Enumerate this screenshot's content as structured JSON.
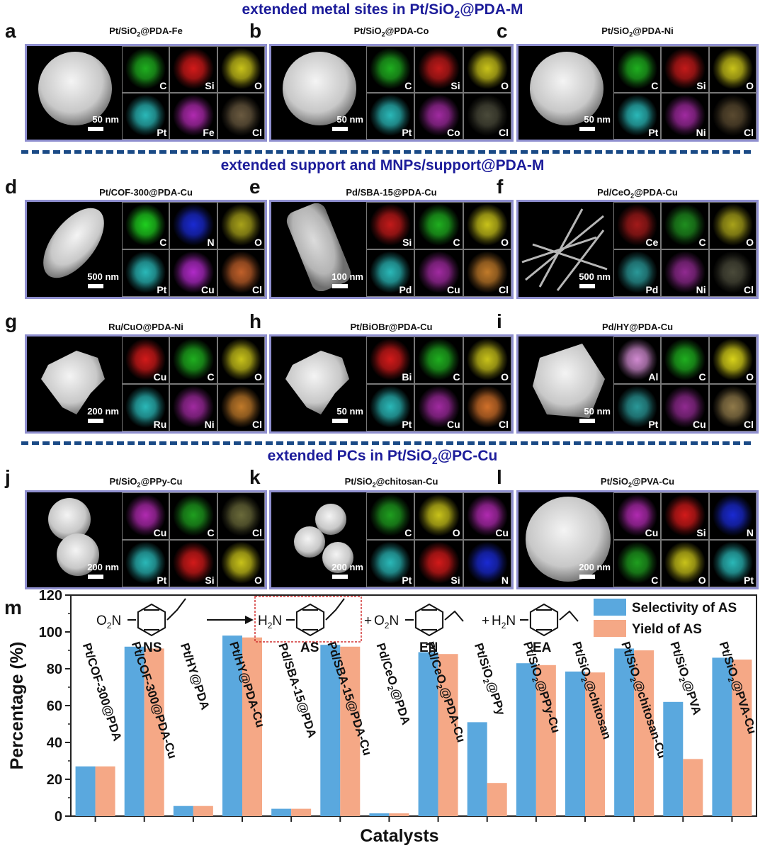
{
  "sections": {
    "metal": {
      "title_pre": "extended metal sites in Pt/SiO",
      "title_sub": "2",
      "title_post": "@PDA-M"
    },
    "support": {
      "title": "extended support and MNPs/support@PDA-M"
    },
    "pc": {
      "title_pre": "extended PCs in Pt/SiO",
      "title_sub": "2",
      "title_post": "@PC-Cu"
    }
  },
  "panels": [
    {
      "label": "a",
      "title_pre": "Pt/SiO",
      "title_sub": "2",
      "title_post": "@PDA-Fe",
      "scale": "50 nm",
      "shape": "sphere",
      "elements": [
        "C",
        "Si",
        "O",
        "Pt",
        "Fe",
        "Cl"
      ],
      "colors": [
        "#1fae1f",
        "#d21a1a",
        "#c8c21a",
        "#2ab8b8",
        "#b02ab0",
        "#6a5a40"
      ]
    },
    {
      "label": "b",
      "title_pre": "Pt/SiO",
      "title_sub": "2",
      "title_post": "@PDA-Co",
      "scale": "50 nm",
      "shape": "sphere",
      "elements": [
        "C",
        "Si",
        "O",
        "Pt",
        "Co",
        "Cl"
      ],
      "colors": [
        "#1fae1f",
        "#c21a1a",
        "#c8c21a",
        "#2ab8b8",
        "#a02aa0",
        "#4a4a3a"
      ]
    },
    {
      "label": "c",
      "title_pre": "Pt/SiO",
      "title_sub": "2",
      "title_post": "@PDA-Ni",
      "scale": "50 nm",
      "shape": "sphere",
      "elements": [
        "C",
        "Si",
        "O",
        "Pt",
        "Ni",
        "Cl"
      ],
      "colors": [
        "#1fae1f",
        "#c21a1a",
        "#c8c21a",
        "#2ab8b8",
        "#a02aa0",
        "#5a4a30"
      ]
    },
    {
      "label": "d",
      "title_pre": "Pt/COF-300@PDA-Cu",
      "title_sub": "",
      "title_post": "",
      "scale": "500 nm",
      "shape": "ellipse",
      "elements": [
        "C",
        "N",
        "O",
        "Pt",
        "Cu",
        "Cl"
      ],
      "colors": [
        "#1fcf1f",
        "#1a2ad2",
        "#a8a21a",
        "#2ab8b8",
        "#b02ac8",
        "#c0602a"
      ]
    },
    {
      "label": "e",
      "title_pre": "Pd/SBA-15@PDA-Cu",
      "title_sub": "",
      "title_post": "",
      "scale": "100 nm",
      "shape": "rod",
      "elements": [
        "Si",
        "C",
        "O",
        "Pd",
        "Cu",
        "Cl"
      ],
      "colors": [
        "#c21a1a",
        "#1fae1f",
        "#c8c21a",
        "#2ab8b8",
        "#a02aa0",
        "#c07a2a"
      ]
    },
    {
      "label": "f",
      "title_pre": "Pd/CeO",
      "title_sub": "2",
      "title_post": "@PDA-Cu",
      "scale": "500 nm",
      "shape": "fibers",
      "elements": [
        "Ce",
        "C",
        "O",
        "Pd",
        "Ni",
        "Cl"
      ],
      "colors": [
        "#a21a1a",
        "#1f8e1f",
        "#a8a21a",
        "#2a9898",
        "#902a90",
        "#4a4a3a"
      ]
    },
    {
      "label": "g",
      "title_pre": "Ru/CuO@PDA-Ni",
      "title_sub": "",
      "title_post": "",
      "scale": "200 nm",
      "shape": "irregular",
      "elements": [
        "Cu",
        "C",
        "O",
        "Ru",
        "Ni",
        "Cl"
      ],
      "colors": [
        "#d21a1a",
        "#1fae1f",
        "#c8c21a",
        "#2ab8b8",
        "#a02aa0",
        "#c07a2a"
      ]
    },
    {
      "label": "h",
      "title_pre": "Pt/BiOBr@PDA-Cu",
      "title_sub": "",
      "title_post": "",
      "scale": "50 nm",
      "shape": "irregular",
      "elements": [
        "Bi",
        "C",
        "O",
        "Pt",
        "Cu",
        "Cl"
      ],
      "colors": [
        "#d21a1a",
        "#1fae1f",
        "#c8c21a",
        "#2ab8b8",
        "#a02aa0",
        "#d0702a"
      ]
    },
    {
      "label": "i",
      "title_pre": "Pd/HY@PDA-Cu",
      "title_sub": "",
      "title_post": "",
      "scale": "50 nm",
      "shape": "block",
      "elements": [
        "Al",
        "C",
        "O",
        "Pt",
        "Cu",
        "Cl"
      ],
      "colors": [
        "#d08ad0",
        "#1fae1f",
        "#d8d21a",
        "#2a9898",
        "#902a90",
        "#907a4a"
      ]
    },
    {
      "label": "j",
      "title_pre": "Pt/SiO",
      "title_sub": "2",
      "title_post": "@PPy-Cu",
      "scale": "200 nm",
      "shape": "twin",
      "elements": [
        "Cu",
        "C",
        "Cl",
        "Pt",
        "Si",
        "O"
      ],
      "colors": [
        "#b02ab0",
        "#1f9e1f",
        "#6a6a3a",
        "#2ab8b8",
        "#d21a1a",
        "#c8c21a"
      ]
    },
    {
      "label": "k",
      "title_pre": "Pt/SiO",
      "title_sub": "2",
      "title_post": "@chitosan-Cu",
      "scale": "200 nm",
      "shape": "triple",
      "elements": [
        "C",
        "O",
        "Cu",
        "Pt",
        "Si",
        "N"
      ],
      "colors": [
        "#1f9e1f",
        "#c8c21a",
        "#b02ab0",
        "#2ab8b8",
        "#d21a1a",
        "#1a2ad2"
      ]
    },
    {
      "label": "l",
      "title_pre": "Pt/SiO",
      "title_sub": "2",
      "title_post": "@PVA-Cu",
      "scale": "200 nm",
      "shape": "bigsphere",
      "elements": [
        "Cu",
        "Si",
        "N",
        "C",
        "O",
        "Pt"
      ],
      "colors": [
        "#b02ab0",
        "#d21a1a",
        "#1a2ad2",
        "#1f9e1f",
        "#c8c21a",
        "#2ab8b8"
      ]
    }
  ],
  "chart_data": {
    "type": "bar",
    "panel_label": "m",
    "xlabel": "Catalysts",
    "ylabel": "Percentage (%)",
    "ylim": [
      0,
      120
    ],
    "yticks": [
      0,
      20,
      40,
      60,
      80,
      100,
      120
    ],
    "categories": [
      {
        "pre": "Pt/COF-300@PDA",
        "sub": "",
        "post": ""
      },
      {
        "pre": "Pt/COF-300@PDA-Cu",
        "sub": "",
        "post": ""
      },
      {
        "pre": "Pt/HY@PDA",
        "sub": "",
        "post": ""
      },
      {
        "pre": "Pt/HY@PDA-Cu",
        "sub": "",
        "post": ""
      },
      {
        "pre": "Pd/SBA-15@PDA",
        "sub": "",
        "post": ""
      },
      {
        "pre": "Pd/SBA-15@PDA-Cu",
        "sub": "",
        "post": ""
      },
      {
        "pre": "Pd/CeO",
        "sub": "2",
        "post": "@PDA"
      },
      {
        "pre": "Pd/CeO",
        "sub": "2",
        "post": "@PDA-Cu"
      },
      {
        "pre": "Pt/SiO",
        "sub": "2",
        "post": "@PPy"
      },
      {
        "pre": "Pt/SiO",
        "sub": "2",
        "post": "@PPy-Cu"
      },
      {
        "pre": "Pt/SiO",
        "sub": "2",
        "post": "@chitosan"
      },
      {
        "pre": "Pt/SiO",
        "sub": "2",
        "post": "@chitosan-Cu"
      },
      {
        "pre": "Pt/SiO",
        "sub": "2",
        "post": "@PVA"
      },
      {
        "pre": "Pt/SiO",
        "sub": "2",
        "post": "@PVA-Cu"
      }
    ],
    "series": [
      {
        "name": "Selectivity of AS",
        "color": "#5aa8de",
        "values": [
          27,
          92,
          5.5,
          98,
          4,
          93,
          1.5,
          89,
          51,
          83,
          78.5,
          91,
          62,
          86
        ]
      },
      {
        "name": "Yield of AS",
        "color": "#f5a886",
        "values": [
          27,
          91,
          5.5,
          97,
          4,
          92,
          1.5,
          88,
          18,
          82,
          78,
          90,
          31,
          85
        ]
      }
    ],
    "legend_position": "top-right",
    "scheme": {
      "ns_label": "NS",
      "as_label": "AS",
      "en_label": "EN",
      "ea_label": "EA",
      "o2n_pre": "O",
      "o2n_sub": "2",
      "o2n_post": "N",
      "h2n_pre": "H",
      "h2n_sub": "2",
      "h2n_post": "N",
      "plus": "+"
    }
  }
}
